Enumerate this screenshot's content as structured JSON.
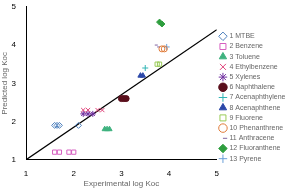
{
  "chart_data": {
    "type": "scatter",
    "x_label": "Experimental log Koc",
    "y_label": "Predicted log Koc",
    "xlim": [
      1,
      5
    ],
    "ylim": [
      1,
      5
    ],
    "xticks": [
      1,
      2,
      3,
      4,
      5
    ],
    "yticks": [
      1,
      2,
      3,
      4,
      5
    ],
    "grid": false,
    "legend": "right",
    "reference_line": {
      "x": [
        1,
        5
      ],
      "values": [
        1,
        4.4
      ],
      "color": "#000000"
    },
    "series": [
      {
        "name": "1 MTBE",
        "color": "#4f81bd",
        "marker": "diamond-open",
        "x": [
          1.6,
          1.65,
          1.7,
          2.1
        ],
        "values": [
          1.9,
          1.9,
          1.9,
          1.9
        ]
      },
      {
        "name": "2 Benzene",
        "color": "#d65fc0",
        "marker": "square-open",
        "x": [
          1.6,
          1.7,
          1.9,
          2.0
        ],
        "values": [
          1.2,
          1.2,
          1.2,
          1.2
        ]
      },
      {
        "name": "3 Toluene",
        "color": "#3fb27f",
        "marker": "triangle",
        "x": [
          2.65,
          2.7,
          2.75
        ],
        "values": [
          1.8,
          1.8,
          1.8
        ]
      },
      {
        "name": "4 Ethylbenzene",
        "color": "#e0457b",
        "marker": "x",
        "x": [
          2.2,
          2.3,
          2.5,
          2.6
        ],
        "values": [
          2.3,
          2.3,
          2.3,
          2.3
        ]
      },
      {
        "name": "5 Xylenes",
        "color": "#7030a0",
        "marker": "star",
        "x": [
          2.2,
          2.3,
          2.4
        ],
        "values": [
          2.2,
          2.2,
          2.2
        ]
      },
      {
        "name": "6 Naphthalene",
        "color": "#5a0f1c",
        "marker": "circle",
        "x": [
          3.0,
          3.05,
          3.1
        ],
        "values": [
          2.6,
          2.6,
          2.6
        ]
      },
      {
        "name": "7 Acenaphthylene",
        "color": "#31b5b5",
        "marker": "plus",
        "x": [
          3.5
        ],
        "values": [
          3.4
        ]
      },
      {
        "name": "8 Acenaphthene",
        "color": "#2a47a8",
        "marker": "triangle",
        "x": [
          3.4,
          3.45
        ],
        "values": [
          3.2,
          3.2
        ]
      },
      {
        "name": "9 Fluorene",
        "color": "#9acb58",
        "marker": "square-open",
        "x": [
          3.75,
          3.8
        ],
        "values": [
          3.5,
          3.5
        ]
      },
      {
        "name": "10 Phenanthrene",
        "color": "#e07b39",
        "marker": "circle-open",
        "x": [
          3.85,
          3.9
        ],
        "values": [
          3.9,
          3.9
        ]
      },
      {
        "name": "11 Anthracene",
        "color": "#8064a2",
        "marker": "dash",
        "x": [
          3.7,
          3.75
        ],
        "values": [
          4.0,
          3.95
        ]
      },
      {
        "name": "12 Fluoranthene",
        "color": "#2e9e3e",
        "marker": "diamond",
        "x": [
          3.8,
          3.85
        ],
        "values": [
          4.6,
          4.55
        ]
      },
      {
        "name": "13 Pyrene",
        "color": "#6a9fd8",
        "marker": "plus",
        "x": [
          3.95
        ],
        "values": [
          3.95
        ]
      }
    ]
  }
}
